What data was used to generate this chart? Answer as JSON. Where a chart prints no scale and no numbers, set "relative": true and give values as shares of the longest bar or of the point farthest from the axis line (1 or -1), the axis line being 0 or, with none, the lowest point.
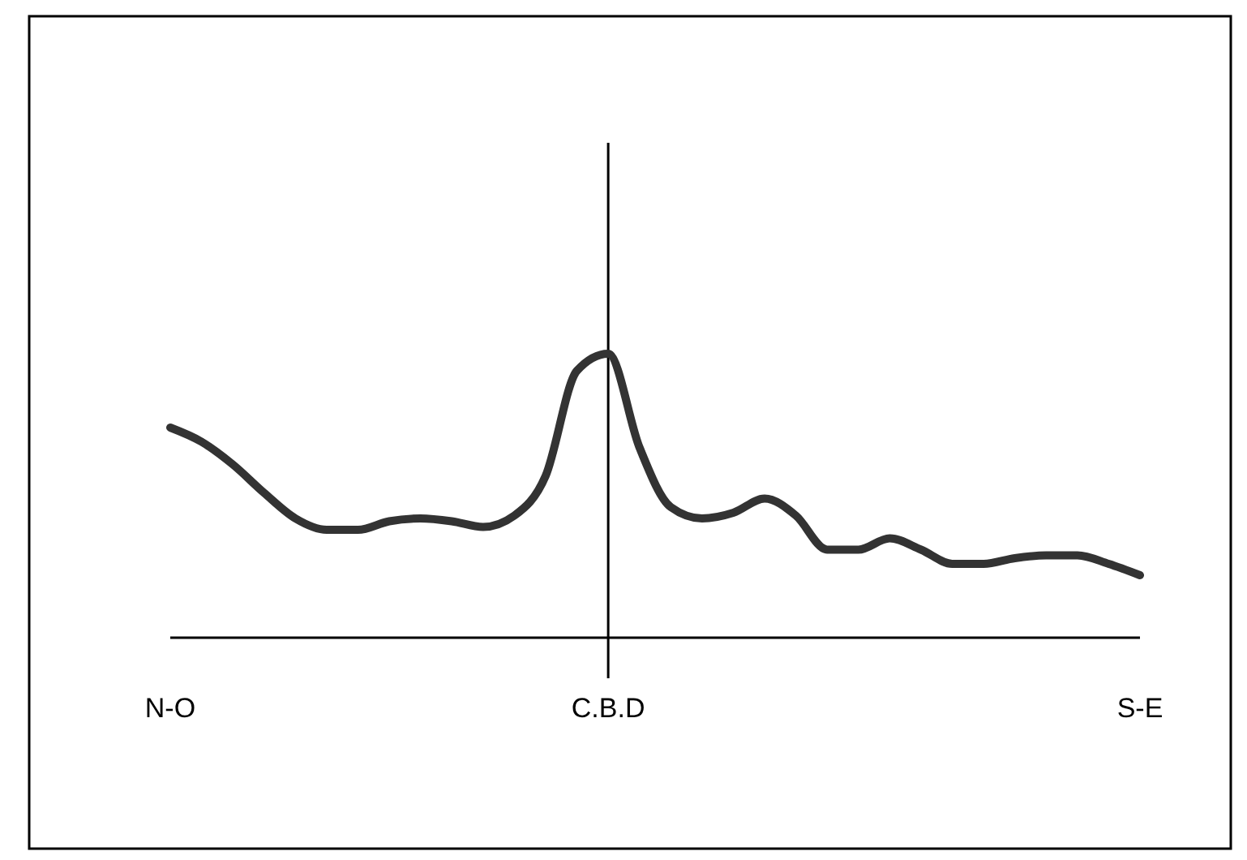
{
  "chart_data": {
    "type": "line",
    "relative": true,
    "categories": [
      "N-O",
      null,
      null,
      null,
      null,
      null,
      null,
      null,
      null,
      null,
      null,
      null,
      null,
      null,
      "C.B.D",
      null,
      null,
      null,
      null,
      null,
      null,
      null,
      null,
      null,
      null,
      null,
      null,
      null,
      null,
      null,
      null,
      "S-E"
    ],
    "series": [
      {
        "color": "#333333",
        "values": [
          0.74,
          0.69,
          0.61,
          0.51,
          0.42,
          0.38,
          0.38,
          0.41,
          0.42,
          0.41,
          0.39,
          0.43,
          0.57,
          0.94,
          1,
          0.67,
          0.46,
          0.42,
          0.44,
          0.49,
          0.43,
          0.31,
          0.31,
          0.35,
          0.31,
          0.26,
          0.26,
          0.28,
          0.29,
          0.29,
          0.26,
          0.22
        ]
      }
    ],
    "ref_lines": [
      {
        "axis": "x",
        "value": "C.B.D",
        "color": "#000000"
      }
    ],
    "grid": false,
    "marker": "none",
    "line_style": "solid"
  }
}
